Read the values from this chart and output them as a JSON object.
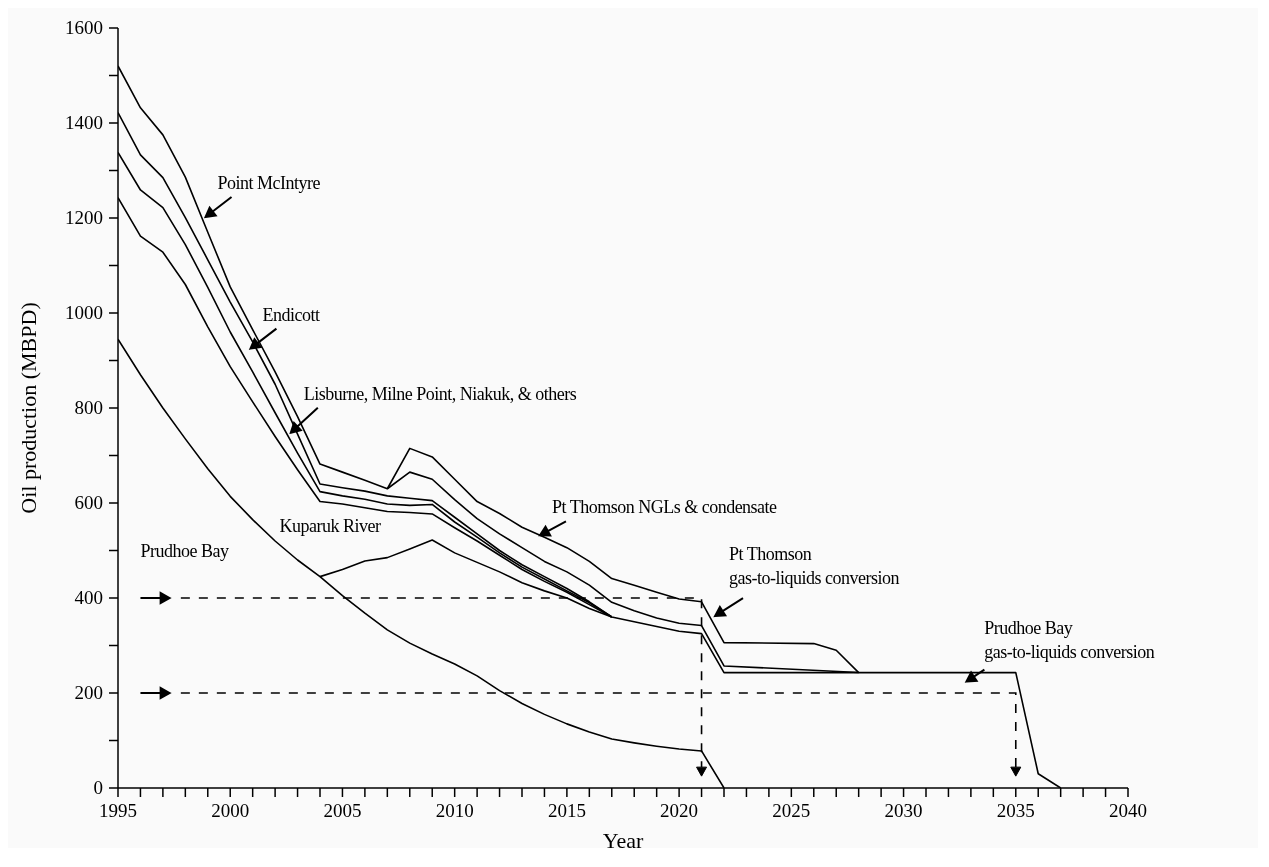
{
  "chart_data": {
    "type": "line",
    "xlabel": "Year",
    "ylabel": "Oil production (MBPD)",
    "xlim": [
      1995,
      2040
    ],
    "ylim": [
      0,
      1600
    ],
    "xticks": [
      1995,
      {
        "value": 1996,
        "label": null
      },
      {
        "value": 1997,
        "label": null
      },
      {
        "value": 1998,
        "label": null
      },
      {
        "value": 1999,
        "label": null
      },
      2000,
      {
        "value": 2001,
        "label": null
      },
      {
        "value": 2002,
        "label": null
      },
      {
        "value": 2003,
        "label": null
      },
      {
        "value": 2004,
        "label": null
      },
      2005,
      {
        "value": 2006,
        "label": null
      },
      {
        "value": 2007,
        "label": null
      },
      {
        "value": 2008,
        "label": null
      },
      {
        "value": 2009,
        "label": null
      },
      2010,
      {
        "value": 2011,
        "label": null
      },
      {
        "value": 2012,
        "label": null
      },
      {
        "value": 2013,
        "label": null
      },
      {
        "value": 2014,
        "label": null
      },
      2015,
      {
        "value": 2016,
        "label": null
      },
      {
        "value": 2017,
        "label": null
      },
      {
        "value": 2018,
        "label": null
      },
      {
        "value": 2019,
        "label": null
      },
      2020,
      {
        "value": 2021,
        "label": null
      },
      {
        "value": 2022,
        "label": null
      },
      {
        "value": 2023,
        "label": null
      },
      {
        "value": 2024,
        "label": null
      },
      2025,
      {
        "value": 2026,
        "label": null
      },
      {
        "value": 2027,
        "label": null
      },
      {
        "value": 2028,
        "label": null
      },
      {
        "value": 2029,
        "label": null
      },
      2030,
      {
        "value": 2031,
        "label": null
      },
      {
        "value": 2032,
        "label": null
      },
      {
        "value": 2033,
        "label": null
      },
      {
        "value": 2034,
        "label": null
      },
      2035,
      {
        "value": 2036,
        "label": null
      },
      {
        "value": 2037,
        "label": null
      },
      {
        "value": 2038,
        "label": null
      },
      {
        "value": 2039,
        "label": null
      },
      2040
    ],
    "yticks": [
      0,
      {
        "value": 100,
        "label": null
      },
      200,
      {
        "value": 300,
        "label": null
      },
      400,
      {
        "value": 500,
        "label": null
      },
      600,
      {
        "value": 700,
        "label": null
      },
      800,
      {
        "value": 900,
        "label": null
      },
      1000,
      {
        "value": 1100,
        "label": null
      },
      1200,
      {
        "value": 1300,
        "label": null
      },
      1400,
      {
        "value": 1500,
        "label": null
      },
      1600
    ],
    "marker": "none",
    "series": [
      {
        "color": "#000000",
        "line_style": "solid",
        "x": [
          1995,
          1996,
          1997,
          1998,
          1999,
          2000,
          2001,
          2002,
          2003,
          2004,
          2005,
          2006,
          2007,
          2008,
          2009,
          2010,
          2011,
          2012,
          2013,
          2014,
          2015,
          2016,
          2017,
          2018,
          2019,
          2020,
          2021,
          2022
        ],
        "values": [
          945,
          870,
          800,
          735,
          672,
          614,
          565,
          520,
          480,
          445,
          405,
          368,
          333,
          305,
          282,
          261,
          236,
          205,
          178,
          155,
          135,
          118,
          103,
          95,
          88,
          82,
          78,
          0
        ]
      },
      {
        "color": "#000000",
        "line_style": "solid",
        "x": [
          2004,
          2005,
          2006,
          2007,
          2008,
          2009,
          2010,
          2011,
          2012,
          2013,
          2014,
          2015,
          2016,
          2017,
          2018,
          2019,
          2020,
          2021,
          2022,
          2028,
          2035,
          2036,
          2037
        ],
        "values": [
          445,
          460,
          478,
          485,
          503,
          522,
          495,
          475,
          455,
          432,
          415,
          400,
          378,
          360,
          350,
          340,
          330,
          325,
          243,
          243,
          243,
          30,
          0
        ]
      },
      {
        "color": "#000000",
        "line_style": "solid",
        "x": [
          1995,
          1996,
          1997,
          1998,
          1999,
          2000,
          2001,
          2002,
          2003,
          2004,
          2005,
          2006,
          2007,
          2008,
          2009,
          2010,
          2011,
          2012,
          2013,
          2014,
          2015,
          2016,
          2017
        ],
        "values": [
          1243,
          1162,
          1128,
          1060,
          971,
          887,
          813,
          740,
          670,
          603,
          598,
          590,
          582,
          580,
          577,
          548,
          520,
          490,
          460,
          435,
          412,
          386,
          360
        ]
      },
      {
        "color": "#000000",
        "line_style": "solid",
        "x": [
          1995,
          1996,
          1997,
          1998,
          1999,
          2000,
          2001,
          2002,
          2003,
          2004,
          2005,
          2006,
          2007,
          2008,
          2009,
          2010,
          2011,
          2012,
          2013,
          2014,
          2015,
          2016,
          2017
        ],
        "values": [
          1338,
          1259,
          1222,
          1144,
          1054,
          960,
          876,
          790,
          705,
          624,
          615,
          608,
          598,
          595,
          597,
          560,
          528,
          495,
          465,
          440,
          415,
          390,
          360
        ]
      },
      {
        "color": "#000000",
        "line_style": "solid",
        "x": [
          1995,
          1996,
          1997,
          1998,
          1999,
          2000,
          2001,
          2002,
          2003,
          2004,
          2005,
          2006,
          2007,
          2008,
          2009,
          2010,
          2011,
          2012,
          2013,
          2014,
          2015,
          2016,
          2017
        ],
        "values": [
          1422,
          1333,
          1285,
          1201,
          1112,
          1023,
          939,
          850,
          745,
          640,
          632,
          625,
          615,
          610,
          605,
          570,
          535,
          500,
          470,
          445,
          420,
          392,
          360
        ]
      },
      {
        "color": "#000000",
        "line_style": "solid",
        "x": [
          1995,
          1996,
          1997,
          1998,
          1999,
          2000,
          2001,
          2002,
          2003,
          2004,
          2005,
          2006,
          2007,
          2008,
          2009,
          2010,
          2011,
          2012,
          2013,
          2014,
          2015,
          2016,
          2017,
          2018,
          2019,
          2020,
          2021,
          2022,
          2028
        ],
        "values": [
          1520,
          1432,
          1375,
          1286,
          1170,
          1055,
          965,
          876,
          782,
          682,
          665,
          648,
          630,
          665,
          650,
          607,
          567,
          535,
          506,
          477,
          455,
          427,
          391,
          373,
          358,
          347,
          342,
          257,
          243
        ]
      },
      {
        "color": "#000000",
        "line_style": "solid",
        "x": [
          2007,
          2008,
          2009,
          2010,
          2011,
          2012,
          2013,
          2014,
          2015,
          2016,
          2017,
          2018,
          2019,
          2020,
          2021,
          2022,
          2026,
          2027,
          2028
        ],
        "values": [
          630,
          715,
          697,
          650,
          603,
          578,
          549,
          528,
          506,
          477,
          441,
          427,
          412,
          398,
          392,
          306,
          304,
          290,
          243
        ]
      }
    ],
    "annotations": [
      {
        "text": "Point McIntyre",
        "x": 1998.9,
        "y": 1202
      },
      {
        "text": "Endicott",
        "x": 2000.9,
        "y": 925
      },
      {
        "text": "Lisburne, Milne Point, Niakuk, & others",
        "x": 2002.7,
        "y": 748
      },
      "Kuparuk River",
      "Prudhoe Bay",
      {
        "text": "Pt Thomson NGLs & condensate",
        "x": 2013.8,
        "y": 532
      },
      {
        "text": "Pt Thomson\ngas-to-liquids conversion",
        "x": 2021.6,
        "y": 362
      },
      "Prudhoe Bay\ngas-to-liquids conversion"
    ]
  }
}
